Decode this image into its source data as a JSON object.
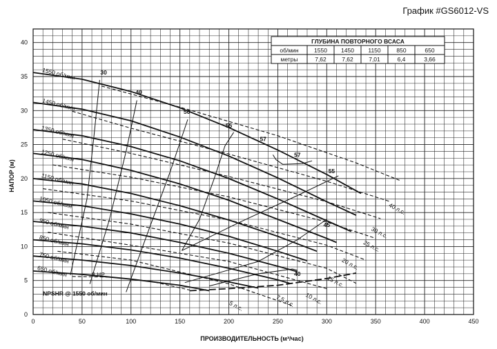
{
  "title": "График #GS6012-VS",
  "chart_data": {
    "type": "line",
    "xlabel": "ПРОИЗВОДИТЕЛЬНОСТЬ (м³/час)",
    "ylabel": "НАПОР (м)",
    "xlim": [
      0,
      450
    ],
    "ylim": [
      0,
      42
    ],
    "x_ticks": [
      0,
      50,
      100,
      150,
      200,
      250,
      300,
      350,
      400,
      450
    ],
    "y_ticks": [
      0,
      5,
      10,
      15,
      20,
      25,
      30,
      35,
      40
    ],
    "grid": true,
    "speed_curves": [
      {
        "label": "1550 об/мин",
        "points": [
          [
            0,
            35.6
          ],
          [
            50,
            34.6
          ],
          [
            100,
            32.8
          ],
          [
            150,
            30.4
          ],
          [
            200,
            27.5
          ],
          [
            250,
            24.2
          ],
          [
            300,
            20.6
          ],
          [
            335,
            17.8
          ]
        ]
      },
      {
        "label": "1450 об/мин",
        "points": [
          [
            0,
            31.2
          ],
          [
            50,
            30.2
          ],
          [
            100,
            28.5
          ],
          [
            150,
            26.1
          ],
          [
            200,
            23.3
          ],
          [
            250,
            20.1
          ],
          [
            300,
            16.6
          ],
          [
            330,
            14.6
          ]
        ]
      },
      {
        "label": "1350 об/мин",
        "points": [
          [
            0,
            27.2
          ],
          [
            50,
            26.3
          ],
          [
            100,
            24.7
          ],
          [
            150,
            22.6
          ],
          [
            200,
            20
          ],
          [
            250,
            17
          ],
          [
            300,
            13.8
          ],
          [
            325,
            12.2
          ]
        ]
      },
      {
        "label": "1250 об/мин",
        "points": [
          [
            0,
            23.7
          ],
          [
            50,
            22.8
          ],
          [
            100,
            21.2
          ],
          [
            150,
            19.2
          ],
          [
            200,
            16.8
          ],
          [
            250,
            14
          ],
          [
            300,
            11.2
          ],
          [
            310,
            10.6
          ]
        ]
      },
      {
        "label": "1150 об/мин",
        "points": [
          [
            0,
            20
          ],
          [
            50,
            19.2
          ],
          [
            100,
            17.8
          ],
          [
            150,
            16
          ],
          [
            200,
            13.9
          ],
          [
            250,
            11.5
          ],
          [
            290,
            9.3
          ]
        ]
      },
      {
        "label": "1050 об/мин",
        "points": [
          [
            0,
            16.7
          ],
          [
            50,
            16
          ],
          [
            100,
            14.8
          ],
          [
            150,
            13.3
          ],
          [
            200,
            11.5
          ],
          [
            250,
            9.3
          ],
          [
            280,
            7.9
          ]
        ]
      },
      {
        "label": "950 об/мин",
        "points": [
          [
            0,
            13.7
          ],
          [
            50,
            13
          ],
          [
            100,
            12
          ],
          [
            150,
            10.6
          ],
          [
            200,
            9
          ],
          [
            250,
            7.1
          ],
          [
            270,
            6.3
          ]
        ]
      },
      {
        "label": "850 об/мин",
        "points": [
          [
            0,
            11
          ],
          [
            50,
            10.4
          ],
          [
            100,
            9.5
          ],
          [
            150,
            8.3
          ],
          [
            200,
            6.8
          ],
          [
            250,
            5.1
          ],
          [
            262,
            4.6
          ]
        ]
      },
      {
        "label": "750 об/мин",
        "points": [
          [
            0,
            8.6
          ],
          [
            50,
            8
          ],
          [
            100,
            7.2
          ],
          [
            150,
            6.1
          ],
          [
            200,
            4.8
          ],
          [
            230,
            3.9
          ]
        ]
      },
      {
        "label": "650 об/мин",
        "points": [
          [
            0,
            6.4
          ],
          [
            50,
            5.9
          ],
          [
            100,
            5.2
          ],
          [
            150,
            4.3
          ],
          [
            180,
            3.5
          ]
        ]
      }
    ],
    "npshr": {
      "label": "NPSHR @ 1550 об/мин",
      "points": [
        [
          160,
          3.5
        ],
        [
          200,
          3.8
        ],
        [
          250,
          4.3
        ],
        [
          300,
          5.3
        ],
        [
          330,
          6.1
        ]
      ]
    },
    "power_lines": [
      {
        "label": "3 HP",
        "points": [
          [
            40,
            5.6
          ],
          [
            80,
            5.5
          ],
          [
            120,
            4.9
          ],
          [
            160,
            3.6
          ]
        ]
      },
      {
        "label": "5 л.с.",
        "points": [
          [
            25,
            9.3
          ],
          [
            100,
            8
          ],
          [
            200,
            4.5
          ],
          [
            265,
            1.3
          ]
        ]
      },
      {
        "label": "7,5 л.с.",
        "points": [
          [
            15,
            12.1
          ],
          [
            100,
            10.2
          ],
          [
            200,
            7.8
          ],
          [
            300,
            3.8
          ]
        ]
      },
      {
        "label": "10 л.с.",
        "points": [
          [
            15,
            15
          ],
          [
            100,
            13.3
          ],
          [
            200,
            10.5
          ],
          [
            300,
            6.8
          ],
          [
            330,
            4.6
          ]
        ]
      },
      {
        "label": "15 л.с.",
        "points": [
          [
            10,
            18.5
          ],
          [
            100,
            16.7
          ],
          [
            200,
            13.9
          ],
          [
            300,
            10.2
          ],
          [
            340,
            8
          ]
        ]
      },
      {
        "label": "20 л.с.",
        "points": [
          [
            20,
            22
          ],
          [
            100,
            20.2
          ],
          [
            200,
            17.3
          ],
          [
            300,
            13.6
          ],
          [
            350,
            11.2
          ]
        ]
      },
      {
        "label": "25 л.с.",
        "points": [
          [
            30,
            25.8
          ],
          [
            100,
            23.7
          ],
          [
            200,
            20.3
          ],
          [
            300,
            16.6
          ],
          [
            355,
            14.1
          ]
        ]
      },
      {
        "label": "30 л.с.",
        "points": [
          [
            40,
            29.9
          ],
          [
            100,
            27.4
          ],
          [
            200,
            23.6
          ],
          [
            300,
            19.6
          ],
          [
            365,
            16.6
          ]
        ]
      },
      {
        "label": "40 л.с.",
        "points": [
          [
            70,
            33.6
          ],
          [
            150,
            30.5
          ],
          [
            250,
            26.3
          ],
          [
            330,
            22.3
          ],
          [
            375,
            19.7
          ]
        ]
      }
    ],
    "efficiency_lines": [
      {
        "label": "30",
        "points": [
          [
            38,
            5.8
          ],
          [
            55,
            17
          ],
          [
            62,
            26
          ],
          [
            68,
            34.5
          ]
        ]
      },
      {
        "label": "40",
        "points": [
          [
            58,
            4.5
          ],
          [
            78,
            14
          ],
          [
            95,
            24
          ],
          [
            106,
            31.5
          ]
        ]
      },
      {
        "label": "50",
        "points": [
          [
            95,
            3.3
          ],
          [
            117,
            12
          ],
          [
            140,
            21
          ],
          [
            158,
            28.7
          ]
        ]
      },
      {
        "label": "55",
        "points": [
          [
            152,
            9.4
          ],
          [
            170,
            14
          ],
          [
            185,
            20
          ],
          [
            196,
            24.8
          ],
          [
            205,
            26.8
          ]
        ]
      },
      {
        "label": "57",
        "points": [
          [
            245,
            23.5
          ],
          [
            248,
            22.8
          ],
          [
            255,
            22.1
          ],
          [
            275,
            22.2
          ],
          [
            285,
            22.6
          ]
        ]
      },
      {
        "label": "55",
        "points": [
          [
            152,
            9.4
          ],
          [
            210,
            13.5
          ],
          [
            270,
            17.5
          ],
          [
            312,
            20.4
          ]
        ]
      },
      {
        "label": "45",
        "points": [
          [
            155,
            4.7
          ],
          [
            230,
            7.8
          ],
          [
            270,
            11
          ],
          [
            300,
            14
          ]
        ]
      },
      {
        "label": "40",
        "points": [
          [
            180,
            4.2
          ],
          [
            230,
            6
          ],
          [
            265,
            6.7
          ],
          [
            270,
            6.5
          ]
        ]
      }
    ],
    "efficiency_labels": [
      {
        "text": "30",
        "x": 72,
        "y": 35.3
      },
      {
        "text": "40",
        "x": 108,
        "y": 32.4
      },
      {
        "text": "50",
        "x": 157,
        "y": 29.5
      },
      {
        "text": "55",
        "x": 200,
        "y": 27.5
      },
      {
        "text": "57",
        "x": 235,
        "y": 25.5
      },
      {
        "text": "57",
        "x": 270,
        "y": 23.2
      },
      {
        "text": "55",
        "x": 305,
        "y": 20.8
      },
      {
        "text": "45",
        "x": 300,
        "y": 12.9
      },
      {
        "text": "40",
        "x": 270,
        "y": 5.7
      }
    ],
    "power_label_positions": [
      {
        "text": "40 л.с.",
        "x": 363,
        "y": 15.9
      },
      {
        "text": "30 л.с.",
        "x": 345,
        "y": 12.4
      },
      {
        "text": "25 л.с.",
        "x": 337,
        "y": 10.4
      },
      {
        "text": "20 л.с.",
        "x": 315,
        "y": 7.8
      },
      {
        "text": "15 л.с.",
        "x": 300,
        "y": 5.2
      },
      {
        "text": "10 л.с.",
        "x": 278,
        "y": 2.7
      },
      {
        "text": "7,5 л.с.",
        "x": 248,
        "y": 2.4
      },
      {
        "text": "5 л.с.",
        "x": 200,
        "y": 1.5
      }
    ],
    "hp_label": {
      "text": "3 HP",
      "x": 60,
      "y": 5.6
    },
    "npshr_label_pos": {
      "x": 10,
      "y": 2.8
    },
    "curve_labels": [
      {
        "text": "1550 об/мин",
        "x": 9,
        "y": 35.5
      },
      {
        "text": "1450 об/мин",
        "x": 9,
        "y": 31.0
      },
      {
        "text": "1350 об/мин",
        "x": 8,
        "y": 27.0
      },
      {
        "text": "1250 об/мин",
        "x": 8,
        "y": 23.5
      },
      {
        "text": "1150 об/мин",
        "x": 8,
        "y": 20.0
      },
      {
        "text": "1050 об/мин",
        "x": 6,
        "y": 16.6
      },
      {
        "text": "950 об/мин",
        "x": 6,
        "y": 13.4
      },
      {
        "text": "850 об/мин",
        "x": 6,
        "y": 10.9
      },
      {
        "text": "750 об/мин",
        "x": 6,
        "y": 8.4
      },
      {
        "text": "650 об/мин",
        "x": 4,
        "y": 6.4
      }
    ],
    "table": {
      "title": "ГЛУБИНА ПОВТОРНОГО ВСАСА",
      "rows": [
        [
          "об/мин",
          "1550",
          "1450",
          "1150",
          "850",
          "650"
        ],
        [
          "метры",
          "7,62",
          "7,62",
          "7,01",
          "6,4",
          "3,66"
        ]
      ]
    }
  }
}
